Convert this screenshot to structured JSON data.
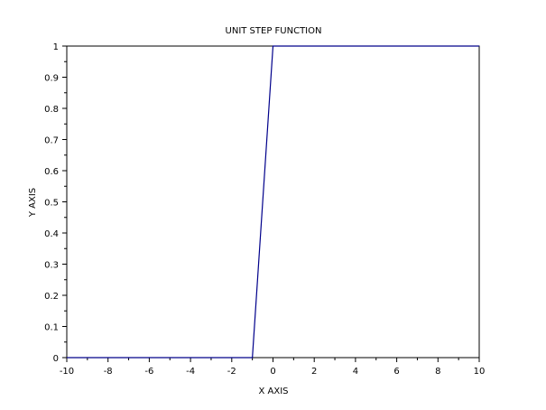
{
  "chart_data": {
    "type": "line",
    "title": "UNIT STEP FUNCTION",
    "xlabel": "X AXIS",
    "ylabel": "Y AXIS",
    "xlim": [
      -10,
      10
    ],
    "ylim": [
      0,
      1
    ],
    "x_ticks": [
      "-10",
      "-8",
      "-6",
      "-4",
      "-2",
      "0",
      "2",
      "4",
      "6",
      "8",
      "10"
    ],
    "y_ticks": [
      "0",
      "0.1",
      "0.2",
      "0.3",
      "0.4",
      "0.5",
      "0.6",
      "0.7",
      "0.8",
      "0.9",
      "1"
    ],
    "grid": false,
    "series": [
      {
        "color": "#00008b",
        "x": [
          -10,
          -9,
          -8,
          -7,
          -6,
          -5,
          -4,
          -3,
          -2,
          -1,
          0,
          1,
          2,
          3,
          4,
          5,
          6,
          7,
          8,
          9,
          10
        ],
        "y": [
          0,
          0,
          0,
          0,
          0,
          0,
          0,
          0,
          0,
          0,
          1,
          1,
          1,
          1,
          1,
          1,
          1,
          1,
          1,
          1,
          1
        ]
      }
    ]
  }
}
